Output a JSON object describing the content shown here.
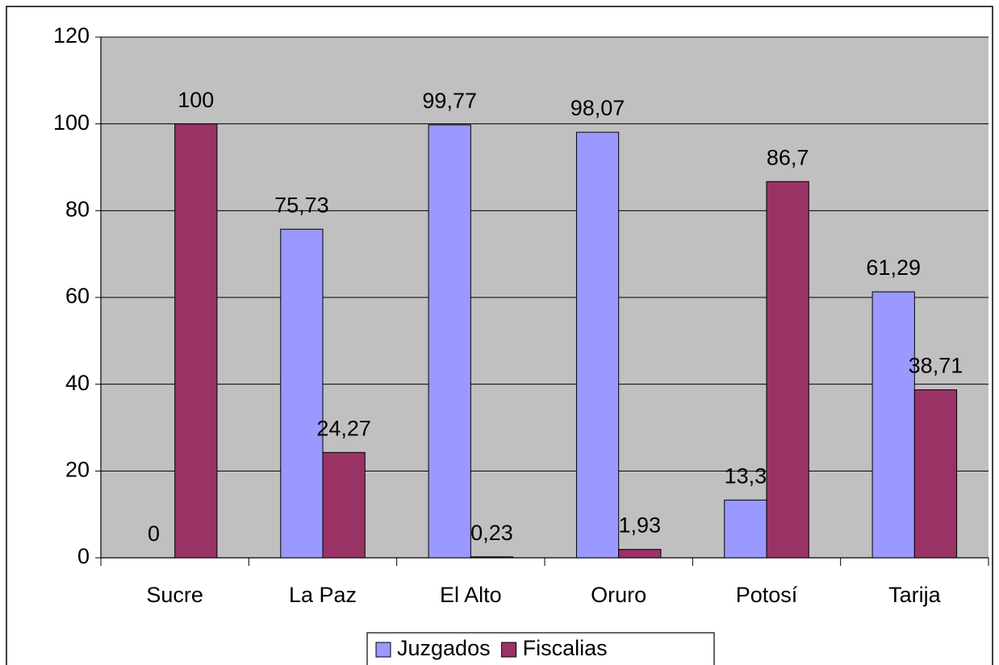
{
  "chart_data": {
    "type": "bar",
    "categories": [
      "Sucre",
      "La Paz",
      "El Alto",
      "Oruro",
      "Potosí",
      "Tarija"
    ],
    "series": [
      {
        "name": "Juzgados",
        "color": "#9999ff",
        "values": [
          0,
          75.73,
          99.77,
          98.07,
          13.3,
          61.29
        ],
        "value_labels": [
          "0",
          "75,73",
          "99,77",
          "98,07",
          "13,3",
          "61,29"
        ]
      },
      {
        "name": "Fiscalias",
        "color": "#993366",
        "values": [
          100,
          24.27,
          0.23,
          1.93,
          86.7,
          38.71
        ],
        "value_labels": [
          "100",
          "24,27",
          "0,23",
          "1,93",
          "86,7",
          "38,71"
        ]
      }
    ],
    "ylim": [
      0,
      120
    ],
    "yticks": [
      0,
      20,
      40,
      60,
      80,
      100,
      120
    ],
    "grid": true,
    "legend": "bottom",
    "plot_background": "#c0c0c0"
  }
}
